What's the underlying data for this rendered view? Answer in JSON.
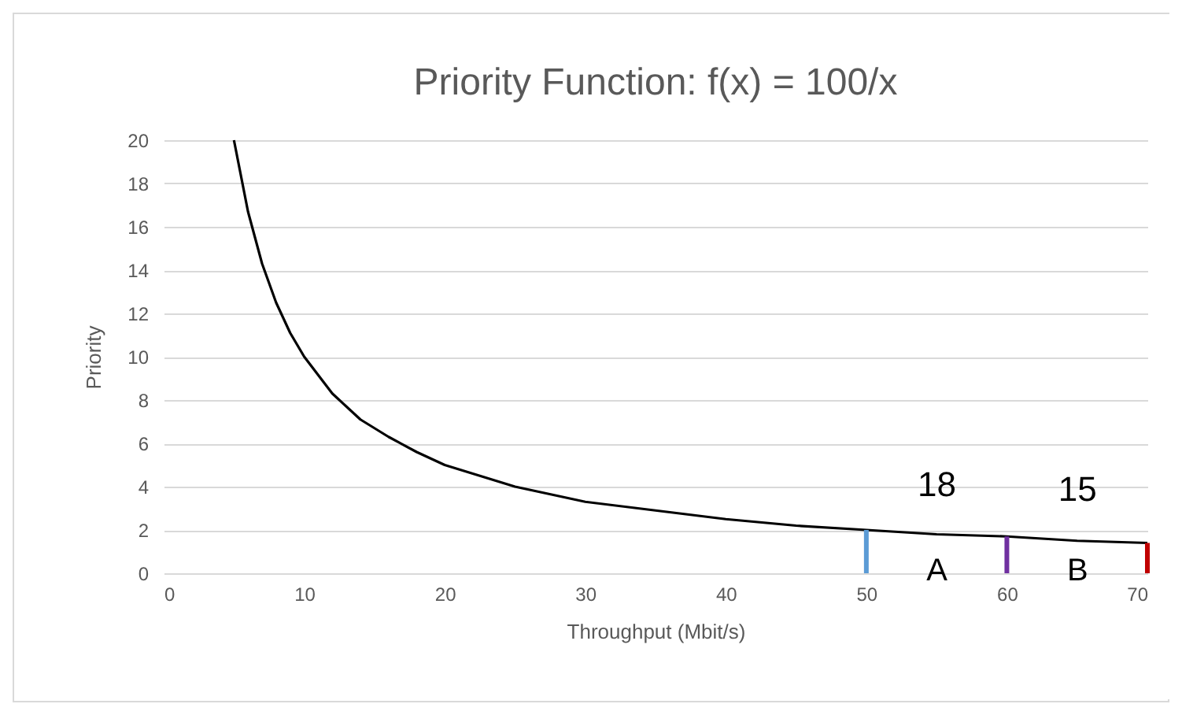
{
  "chart_data": {
    "type": "line",
    "title": "Priority Function: f(x) = 100/x",
    "xlabel": "Throughput (Mbit/s)",
    "ylabel": "Priority",
    "xlim": [
      0,
      70
    ],
    "xticks": [
      0,
      10,
      20,
      30,
      40,
      50,
      60,
      70
    ],
    "ylim": [
      0,
      20
    ],
    "yticks": [
      0,
      2,
      4,
      6,
      8,
      10,
      12,
      14,
      16,
      18,
      20
    ],
    "grid": "y",
    "series": [
      {
        "color": "#000000",
        "x": [
          5,
          6,
          7,
          8,
          9,
          10,
          12,
          14,
          16,
          18,
          20,
          25,
          30,
          35,
          40,
          45,
          50,
          55,
          60,
          65,
          70
        ],
        "values": [
          20,
          16.7,
          14.3,
          12.5,
          11.1,
          10,
          8.3,
          7.1,
          6.3,
          5.6,
          5,
          4,
          3.3,
          2.9,
          2.5,
          2.2,
          2,
          1.8,
          1.7,
          1.5,
          1.4
        ]
      },
      {
        "color": "#5b9bd5",
        "x": [
          50,
          50
        ],
        "values": [
          0,
          2
        ]
      },
      {
        "color": "#7030a0",
        "x": [
          60,
          60
        ],
        "values": [
          0,
          1.7
        ]
      },
      {
        "color": "#c00000",
        "x": [
          70,
          70
        ],
        "values": [
          0,
          1.4
        ]
      }
    ],
    "annotations": [
      "18",
      "15",
      "A",
      "B"
    ]
  }
}
